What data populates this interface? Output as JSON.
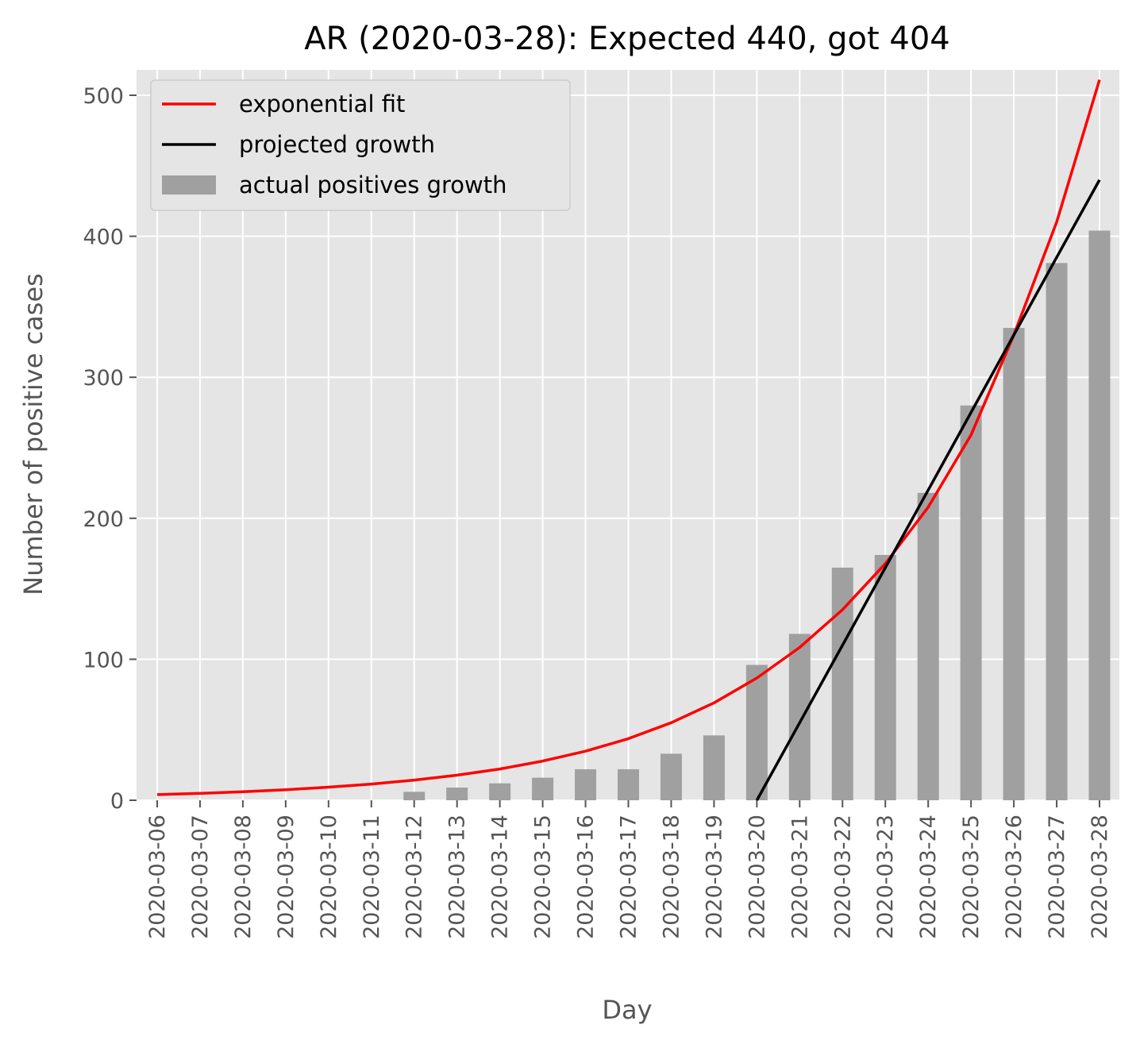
{
  "chart_data": {
    "type": "bar",
    "title": "AR (2020-03-28): Expected 440, got 404",
    "xlabel": "Day",
    "ylabel": "Number of positive cases",
    "ylim": [
      0,
      520
    ],
    "yticks": [
      0,
      100,
      200,
      300,
      400,
      500
    ],
    "grid": true,
    "legend_position": "top-left",
    "categories": [
      "2020-03-06",
      "2020-03-07",
      "2020-03-08",
      "2020-03-09",
      "2020-03-10",
      "2020-03-11",
      "2020-03-12",
      "2020-03-13",
      "2020-03-14",
      "2020-03-15",
      "2020-03-16",
      "2020-03-17",
      "2020-03-18",
      "2020-03-19",
      "2020-03-20",
      "2020-03-21",
      "2020-03-22",
      "2020-03-23",
      "2020-03-24",
      "2020-03-25",
      "2020-03-26",
      "2020-03-27",
      "2020-03-28"
    ],
    "series": [
      {
        "name": "exponential fit",
        "kind": "line",
        "color": "#ff0000",
        "values": [
          4,
          4.9,
          6,
          7.5,
          9.3,
          11.5,
          14.3,
          17.8,
          22.2,
          27.8,
          34.8,
          43.7,
          55,
          69.1,
          86.7,
          108.4,
          135.2,
          167.8,
          207.9,
          259,
          330,
          410,
          511
        ]
      },
      {
        "name": "projected growth",
        "kind": "line",
        "color": "#000000",
        "x_start": "2020-03-20",
        "values": [
          null,
          null,
          null,
          null,
          null,
          null,
          null,
          null,
          null,
          null,
          null,
          null,
          null,
          null,
          0,
          55,
          110,
          165,
          220,
          275,
          330,
          385,
          440
        ]
      },
      {
        "name": "actual positives growth",
        "kind": "bar",
        "color": "#a0a0a0",
        "values": [
          0,
          0,
          0,
          0,
          0,
          0,
          6,
          9,
          12,
          16,
          22,
          22,
          33,
          46,
          96,
          118,
          165,
          174,
          218,
          280,
          335,
          381,
          404
        ]
      }
    ]
  }
}
